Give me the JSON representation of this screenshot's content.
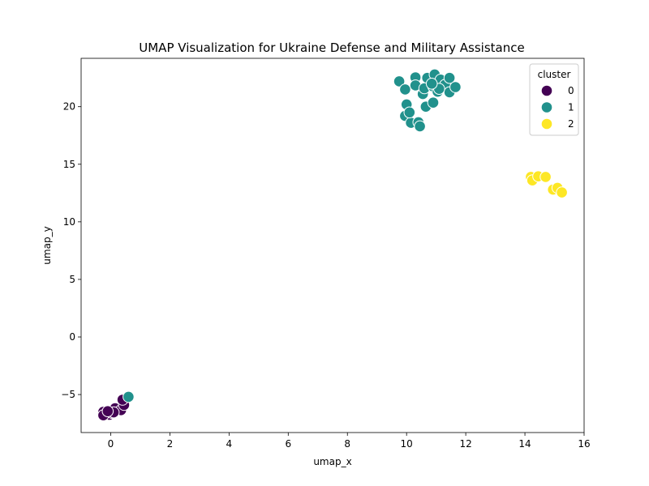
{
  "chart_data": {
    "type": "scatter",
    "title": "UMAP Visualization for Ukraine Defense and Military Assistance",
    "xlabel": "umap_x",
    "ylabel": "umap_y",
    "xlim": [
      -1,
      16
    ],
    "ylim": [
      -8.3,
      24.2
    ],
    "xticks": [
      0,
      2,
      4,
      6,
      8,
      10,
      12,
      14,
      16
    ],
    "yticks": [
      -5,
      0,
      5,
      10,
      15,
      20
    ],
    "grid": false,
    "legend": {
      "title": "cluster",
      "placement": "top-right"
    },
    "series": [
      {
        "name": "0",
        "color": "#440154",
        "points": [
          [
            -0.25,
            -6.5
          ],
          [
            -0.05,
            -6.75
          ],
          [
            0.05,
            -6.6
          ],
          [
            0.15,
            -6.2
          ],
          [
            0.35,
            -6.35
          ],
          [
            0.45,
            -5.9
          ],
          [
            0.4,
            -5.45
          ],
          [
            -0.25,
            -6.8
          ],
          [
            0.1,
            -6.55
          ],
          [
            -0.1,
            -6.45
          ]
        ]
      },
      {
        "name": "1",
        "color": "#21918c",
        "points": [
          [
            9.75,
            22.2
          ],
          [
            9.95,
            21.5
          ],
          [
            10.3,
            22.55
          ],
          [
            10.3,
            21.85
          ],
          [
            10.55,
            21.1
          ],
          [
            10.7,
            22.5
          ],
          [
            10.6,
            21.6
          ],
          [
            10.9,
            21.75
          ],
          [
            10.95,
            22.8
          ],
          [
            11.05,
            21.3
          ],
          [
            11.15,
            22.35
          ],
          [
            11.3,
            21.9
          ],
          [
            11.45,
            21.25
          ],
          [
            11.45,
            22.5
          ],
          [
            11.65,
            21.7
          ],
          [
            11.1,
            21.55
          ],
          [
            10.85,
            22.0
          ],
          [
            10.0,
            20.2
          ],
          [
            9.95,
            19.2
          ],
          [
            10.15,
            18.6
          ],
          [
            10.1,
            19.5
          ],
          [
            10.4,
            18.65
          ],
          [
            10.45,
            18.3
          ],
          [
            10.65,
            20.0
          ],
          [
            10.9,
            20.35
          ],
          [
            0.6,
            -5.2
          ]
        ]
      },
      {
        "name": "2",
        "color": "#fde725",
        "points": [
          [
            14.2,
            13.9
          ],
          [
            14.25,
            13.6
          ],
          [
            14.45,
            13.95
          ],
          [
            14.7,
            13.9
          ],
          [
            14.95,
            12.8
          ],
          [
            15.1,
            12.95
          ],
          [
            15.25,
            12.55
          ]
        ]
      }
    ]
  }
}
